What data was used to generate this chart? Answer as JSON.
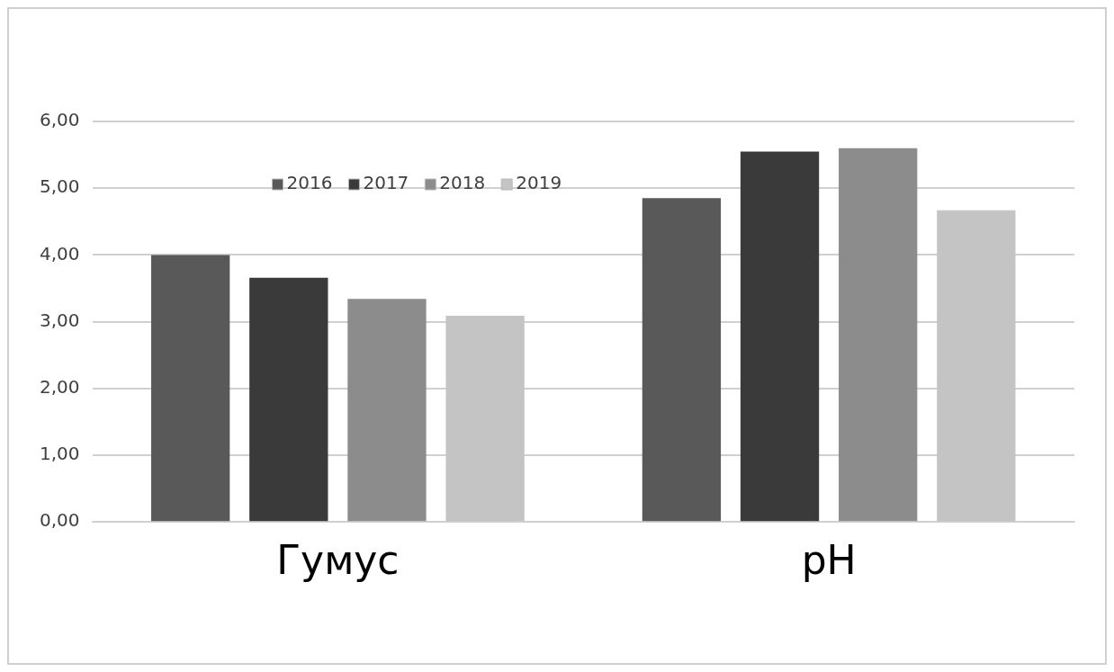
{
  "chart_data": {
    "type": "bar",
    "categories": [
      "Гумус",
      "pH"
    ],
    "series": [
      {
        "name": "2016",
        "color": "#595959",
        "values": [
          4.0,
          4.85
        ]
      },
      {
        "name": "2017",
        "color": "#3a3a3a",
        "values": [
          3.66,
          5.55
        ]
      },
      {
        "name": "2018",
        "color": "#8c8c8c",
        "values": [
          3.34,
          5.6
        ]
      },
      {
        "name": "2019",
        "color": "#c4c4c4",
        "values": [
          3.09,
          4.67
        ]
      }
    ],
    "ylim": [
      0,
      6
    ],
    "yticks": [
      {
        "value": 0,
        "label": "0,00"
      },
      {
        "value": 1,
        "label": "1,00"
      },
      {
        "value": 2,
        "label": "2,00"
      },
      {
        "value": 3,
        "label": "3,00"
      },
      {
        "value": 4,
        "label": "4,00"
      },
      {
        "value": 5,
        "label": "5,00"
      },
      {
        "value": 6,
        "label": "6,00"
      }
    ],
    "grid": "y",
    "legend": "top left"
  }
}
